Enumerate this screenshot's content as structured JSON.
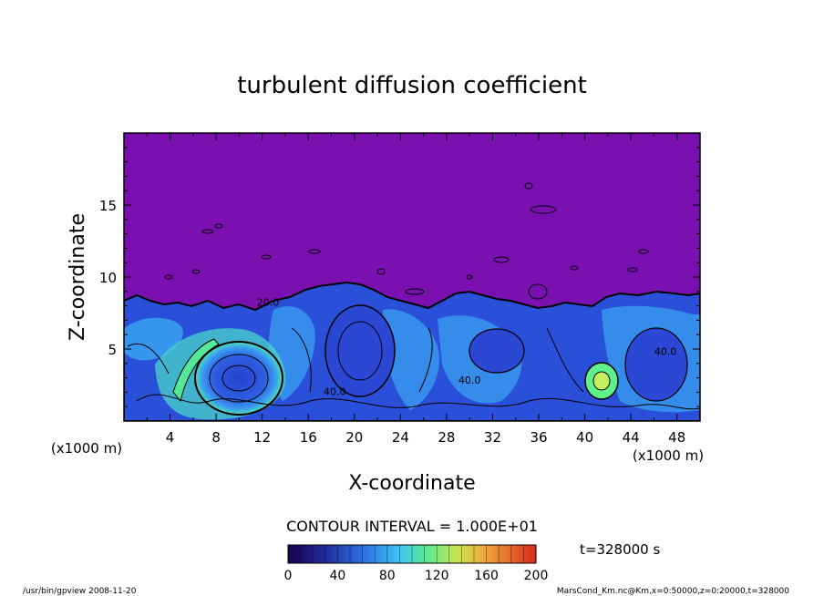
{
  "chart_data": {
    "type": "contour",
    "title": "turbulent diffusion coefficient",
    "xlabel": "X-coordinate",
    "ylabel": "Z-coordinate",
    "x_unit_left": "(x1000 m)",
    "x_unit_right": "(x1000 m)",
    "xlim": [
      0,
      50
    ],
    "ylim": [
      0,
      20
    ],
    "x_ticks": [
      "4",
      "8",
      "12",
      "16",
      "20",
      "24",
      "28",
      "32",
      "36",
      "40",
      "44",
      "48"
    ],
    "y_ticks": [
      "5",
      "10",
      "15"
    ],
    "contour_interval_text": "CONTOUR INTERVAL = 1.000E+01",
    "contour_labels": [
      {
        "text": "20.0",
        "x": 12.5,
        "z": 8.0
      },
      {
        "text": "40.0",
        "x": 18.3,
        "z": 1.8
      },
      {
        "text": "40.0",
        "x": 30.0,
        "z": 2.6
      },
      {
        "text": "40.0",
        "x": 47.0,
        "z": 4.6
      }
    ],
    "colorbar": {
      "min": 0,
      "max": 200,
      "tick_labels": [
        "0",
        "40",
        "80",
        "120",
        "160",
        "200"
      ]
    },
    "time_text": "t=328000 s",
    "footer_left": "/usr/bin/gpview   2008-11-20",
    "footer_right": "MarsCond_Km.nc@Km,x=0:50000,z=0:20000,t=328000",
    "colors": {
      "background_field": "#7a10b0",
      "low_field": "#2f5ee0",
      "mid_field": "#38b8f0",
      "high_field": "#5ef08a"
    }
  }
}
